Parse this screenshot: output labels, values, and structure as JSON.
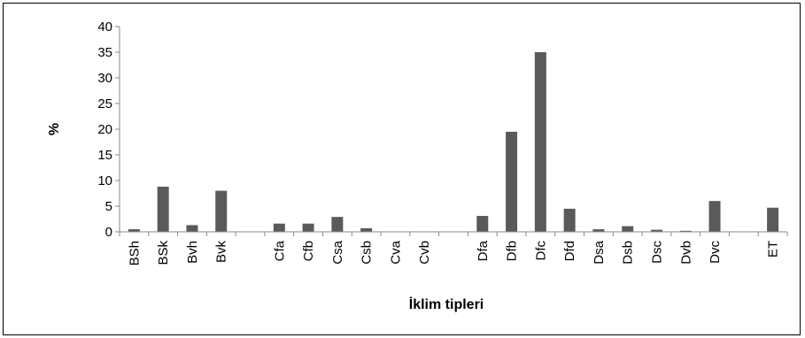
{
  "chart_data": {
    "type": "bar",
    "title": "",
    "xlabel": "İklim tipleri",
    "ylabel": "%",
    "ylim": [
      0,
      40
    ],
    "yticks": [
      0,
      5,
      10,
      15,
      20,
      25,
      30,
      35,
      40
    ],
    "grid": false,
    "legend": "none",
    "bar_color": "#5a5a5a",
    "categories": [
      "BSh",
      "BSk",
      "Bvh",
      "Bvk",
      "",
      "Cfa",
      "Cfb",
      "Csa",
      "Csb",
      "Cva",
      "Cvb",
      "",
      "Dfa",
      "Dfb",
      "Dfc",
      "Dfd",
      "Dsa",
      "Dsb",
      "Dsc",
      "Dvb",
      "Dvc",
      "",
      "ET"
    ],
    "values": [
      0.5,
      8.8,
      1.3,
      8.0,
      null,
      1.6,
      1.6,
      2.9,
      0.7,
      0,
      0,
      null,
      3.1,
      19.5,
      35.0,
      4.5,
      0.5,
      1.1,
      0.4,
      0.2,
      6.0,
      null,
      4.7
    ]
  }
}
